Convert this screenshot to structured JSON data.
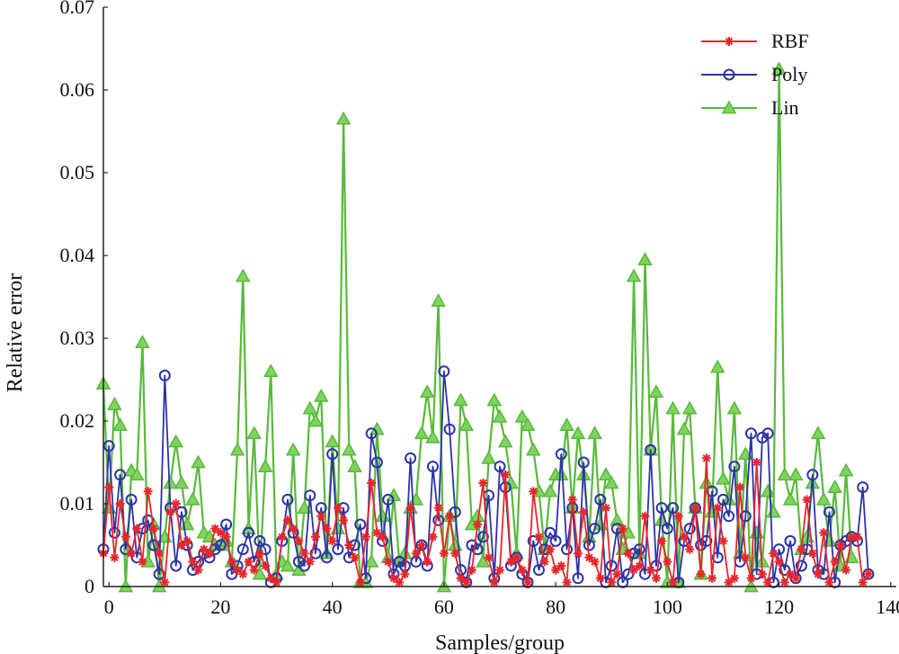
{
  "chart_data": {
    "type": "line",
    "title": "",
    "xlabel": "Samples/group",
    "ylabel": "Relative error",
    "xlim": [
      -1,
      141
    ],
    "ylim": [
      0,
      0.07
    ],
    "xticks": [
      0,
      20,
      40,
      60,
      80,
      100,
      120,
      140
    ],
    "yticks": [
      {
        "value": 0,
        "label": "0"
      },
      {
        "value": 0.01,
        "label": "0.01"
      },
      {
        "value": 0.02,
        "label": "0.02"
      },
      {
        "value": 0.03,
        "label": "0.03"
      },
      {
        "value": 0.04,
        "label": "0.04"
      },
      {
        "value": 0.05,
        "label": "0.05"
      },
      {
        "value": 0.06,
        "label": "0.06"
      },
      {
        "value": 0.07,
        "label": "0.07"
      }
    ],
    "legend_position": "top-right",
    "x_start": -1,
    "series": [
      {
        "name": "RBF",
        "color": "#e8262a",
        "marker": "star",
        "values": [
          0.004,
          0.012,
          0.0035,
          0.01,
          0.006,
          0.004,
          0.007,
          0.003,
          0.0115,
          0.007,
          0.004,
          0.0005,
          0.009,
          0.01,
          0.005,
          0.0055,
          0.003,
          0.002,
          0.0045,
          0.004,
          0.007,
          0.0065,
          0.006,
          0.003,
          0.002,
          0.0015,
          0.003,
          0.002,
          0.004,
          0.0025,
          0.001,
          0.0005,
          0.006,
          0.008,
          0.007,
          0.0055,
          0.004,
          0.003,
          0.006,
          0.0085,
          0.007,
          0.0055,
          0.0095,
          0.008,
          0.005,
          0.0035,
          0.0005,
          0.006,
          0.0125,
          0.0065,
          0.006,
          0.003,
          0.001,
          0.0005,
          0.0015,
          0.0095,
          0.004,
          0.005,
          0.003,
          0.006,
          0.0095,
          0.004,
          0.0085,
          0.004,
          0.001,
          0.0005,
          0.002,
          0.0075,
          0.0125,
          0.0035,
          0.0005,
          0.002,
          0.0135,
          0.003,
          0.0035,
          0.002,
          0.0005,
          0.0115,
          0.006,
          0.003,
          0.0045,
          0.002,
          0.0025,
          0.0005,
          0.0105,
          0.004,
          0.009,
          0.0035,
          0.003,
          0.001,
          0.0095,
          0.0005,
          0.0015,
          0.007,
          0.004,
          0.002,
          0.0025,
          0.0085,
          0.002,
          0.001,
          0.0055,
          0.003,
          0.0005,
          0.0085,
          0.006,
          0.0045,
          0.0095,
          0.0015,
          0.0155,
          0.001,
          0.0095,
          0.0055,
          0.0005,
          0.001,
          0.012,
          0.0035,
          0.001,
          0.015,
          0.0015,
          0.0005,
          0.004,
          0.003,
          0.0005,
          0.0015,
          0.001,
          0.0045,
          0.0105,
          0.004,
          0.0015,
          0.0065,
          0.0005,
          0.003,
          0.005,
          0.002,
          0.006,
          0.006,
          0.0005,
          0.0015
        ]
      },
      {
        "name": "Poly",
        "color": "#2b33a8",
        "marker": "circle",
        "values": [
          0.0045,
          0.017,
          0.0065,
          0.0135,
          0.0045,
          0.0105,
          0.0035,
          0.007,
          0.008,
          0.005,
          0.0015,
          0.0255,
          0.0095,
          0.0025,
          0.009,
          0.005,
          0.002,
          0.003,
          0.004,
          0.0035,
          0.0045,
          0.005,
          0.0075,
          0.0015,
          0.0025,
          0.0045,
          0.0065,
          0.003,
          0.0055,
          0.0045,
          0.0005,
          0.001,
          0.0055,
          0.0105,
          0.0065,
          0.003,
          0.0025,
          0.011,
          0.004,
          0.0095,
          0.0035,
          0.016,
          0.0045,
          0.0095,
          0.0035,
          0.005,
          0.0075,
          0.001,
          0.0185,
          0.015,
          0.0055,
          0.0105,
          0.0015,
          0.003,
          0.0025,
          0.0155,
          0.003,
          0.005,
          0.0025,
          0.0145,
          0.008,
          0.026,
          0.019,
          0.009,
          0.002,
          0.0005,
          0.005,
          0.0045,
          0.006,
          0.011,
          0.001,
          0.0145,
          0.012,
          0.0025,
          0.0035,
          0.0015,
          0.0005,
          0.0055,
          0.002,
          0.0045,
          0.0065,
          0.0055,
          0.016,
          0.0045,
          0.0095,
          0.001,
          0.015,
          0.005,
          0.007,
          0.0105,
          0.0005,
          0.0025,
          0.007,
          0.0005,
          0.0015,
          0.004,
          0.0045,
          0.0015,
          0.0165,
          0.0025,
          0.0095,
          0.007,
          0.0095,
          0.0005,
          0.0055,
          0.007,
          0.0095,
          0.005,
          0.0055,
          0.0115,
          0.0035,
          0.0105,
          0.0085,
          0.0145,
          0.003,
          0.0085,
          0.0185,
          0.0015,
          0.018,
          0.0185,
          0.0005,
          0.0045,
          0.002,
          0.0055,
          0.001,
          0.0025,
          0.0045,
          0.0135,
          0.002,
          0.0015,
          0.009,
          0.0005,
          0.005,
          0.0055,
          0.006,
          0.0055,
          0.012,
          0.0015
        ]
      },
      {
        "name": "Lin",
        "color": "#59b93b",
        "marker": "triangle",
        "values": [
          0.0245,
          0.0095,
          0.022,
          0.0195,
          0.0,
          0.014,
          0.0135,
          0.0295,
          0.003,
          0.0075,
          0.0,
          0.006,
          0.0125,
          0.0175,
          0.0125,
          0.0075,
          0.0105,
          0.015,
          0.0065,
          0.006,
          0.005,
          0.005,
          0.0055,
          0.003,
          0.0165,
          0.0375,
          0.007,
          0.0185,
          0.0015,
          0.0145,
          0.026,
          0.0015,
          0.003,
          0.0025,
          0.0165,
          0.002,
          0.0095,
          0.0215,
          0.02,
          0.023,
          0.004,
          0.0175,
          0.007,
          0.0565,
          0.0165,
          0.0145,
          0.0005,
          0.0005,
          0.003,
          0.019,
          0.0085,
          0.0035,
          0.011,
          0.003,
          0.004,
          0.0095,
          0.0105,
          0.0185,
          0.0235,
          0.018,
          0.0345,
          0.0,
          0.0085,
          0.005,
          0.0225,
          0.0195,
          0.0075,
          0.0085,
          0.003,
          0.0155,
          0.0225,
          0.0205,
          0.0175,
          0.0125,
          0.004,
          0.0205,
          0.0195,
          0.0165,
          0.0115,
          0.0045,
          0.0115,
          0.0135,
          0.0135,
          0.0195,
          0.0095,
          0.0185,
          0.0135,
          0.006,
          0.0185,
          0.0075,
          0.0135,
          0.0125,
          0.008,
          0.0045,
          0.0065,
          0.0375,
          0.004,
          0.0395,
          0.0165,
          0.0235,
          0.008,
          0.0005,
          0.0215,
          0.0005,
          0.019,
          0.0215,
          0.0095,
          0.0015,
          0.0125,
          0.009,
          0.0265,
          0.013,
          0.0105,
          0.0215,
          0.004,
          0.016,
          0.0,
          0.0065,
          0.003,
          0.0115,
          0.009,
          0.0625,
          0.0135,
          0.0105,
          0.0135,
          0.0045,
          0.006,
          0.0125,
          0.0185,
          0.0105,
          0.0055,
          0.012,
          0.0025,
          0.014,
          0.0035
        ]
      }
    ]
  }
}
